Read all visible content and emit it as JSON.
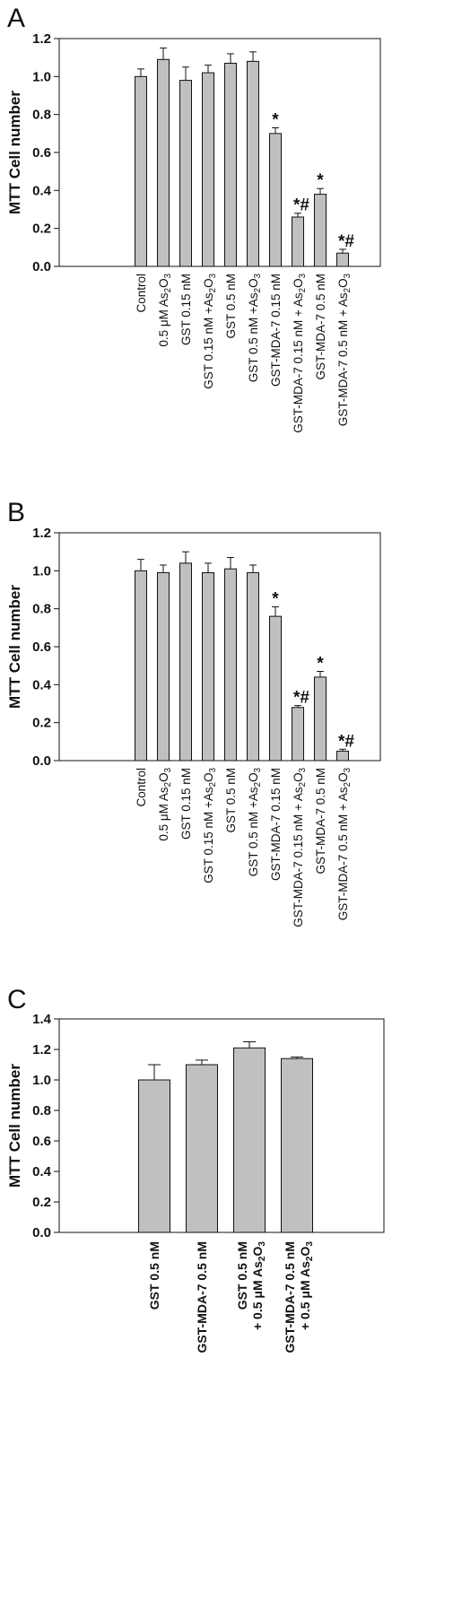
{
  "chart_data": [
    {
      "type": "bar",
      "panel_label": "A",
      "ylabel": "MTT Cell number",
      "ylim": [
        0,
        1.2
      ],
      "yticks": [
        "0.0",
        "0.2",
        "0.4",
        "0.6",
        "0.8",
        "1.0",
        "1.2"
      ],
      "categories": [
        [
          "Control"
        ],
        [
          "0.5 μM As",
          "2",
          "O",
          "3"
        ],
        [
          "GST 0.15 nM"
        ],
        [
          "GST 0.15 nM +As",
          "2",
          "O",
          "3"
        ],
        [
          "GST 0.5 nM"
        ],
        [
          "GST 0.5 nM +As",
          "2",
          "O",
          "3"
        ],
        [
          "GST-MDA-7 0.15 nM"
        ],
        [
          "GST-MDA-7 0.15 nM + As",
          "2",
          "O",
          "3"
        ],
        [
          "GST-MDA-7 0.5 nM"
        ],
        [
          "GST-MDA-7 0.5 nM + As",
          "2",
          "O",
          "3"
        ]
      ],
      "values": [
        1.0,
        1.09,
        0.98,
        1.02,
        1.07,
        1.08,
        0.7,
        0.26,
        0.38,
        0.07
      ],
      "errors": [
        0.04,
        0.06,
        0.07,
        0.04,
        0.05,
        0.05,
        0.03,
        0.02,
        0.03,
        0.02
      ],
      "markers": [
        "",
        "",
        "",
        "",
        "",
        "",
        "*",
        "*#",
        "*",
        "*#"
      ],
      "bar_color": "#c0c0c0",
      "grid": false
    },
    {
      "type": "bar",
      "panel_label": "B",
      "ylabel": "MTT Cell number",
      "ylim": [
        0,
        1.2
      ],
      "yticks": [
        "0.0",
        "0.2",
        "0.4",
        "0.6",
        "0.8",
        "1.0",
        "1.2"
      ],
      "categories": [
        [
          "Control"
        ],
        [
          "0.5 μM As",
          "2",
          "O",
          "3"
        ],
        [
          "GST 0.15 nM"
        ],
        [
          "GST 0.15 nM +As",
          "2",
          "O",
          "3"
        ],
        [
          "GST 0.5 nM"
        ],
        [
          "GST 0.5 nM +As",
          "2",
          "O",
          "3"
        ],
        [
          "GST-MDA-7 0.15 nM"
        ],
        [
          "GST-MDA-7 0.15 nM + As",
          "2",
          "O",
          "3"
        ],
        [
          "GST-MDA-7 0.5 nM"
        ],
        [
          "GST-MDA-7 0.5 nM + As",
          "2",
          "O",
          "3"
        ]
      ],
      "values": [
        1.0,
        0.99,
        1.04,
        0.99,
        1.01,
        0.99,
        0.76,
        0.28,
        0.44,
        0.05
      ],
      "errors": [
        0.06,
        0.04,
        0.06,
        0.05,
        0.06,
        0.04,
        0.05,
        0.01,
        0.03,
        0.01
      ],
      "markers": [
        "",
        "",
        "",
        "",
        "",
        "",
        "*",
        "*#",
        "*",
        "*#"
      ],
      "bar_color": "#c0c0c0",
      "grid": false
    },
    {
      "type": "bar",
      "panel_label": "C",
      "ylabel": "MTT Cell number",
      "ylim": [
        0,
        1.4
      ],
      "yticks": [
        "0.0",
        "0.2",
        "0.4",
        "0.6",
        "0.8",
        "1.0",
        "1.2",
        "1.4"
      ],
      "categories": [
        [
          [
            "GST 0.5 nM"
          ]
        ],
        [
          [
            "GST-MDA-7 0.5 nM"
          ]
        ],
        [
          [
            "GST 0.5 nM"
          ],
          [
            "+ 0.5 μM As",
            "2",
            "O",
            "3"
          ]
        ],
        [
          [
            "GST-MDA-7 0.5 nM"
          ],
          [
            "+ 0.5 μM As",
            "2",
            "O",
            "3"
          ]
        ]
      ],
      "values": [
        1.0,
        1.1,
        1.21,
        1.14
      ],
      "errors": [
        0.1,
        0.03,
        0.04,
        0.01
      ],
      "markers": [
        "",
        "",
        "",
        ""
      ],
      "bar_color": "#c0c0c0",
      "grid": false
    }
  ]
}
